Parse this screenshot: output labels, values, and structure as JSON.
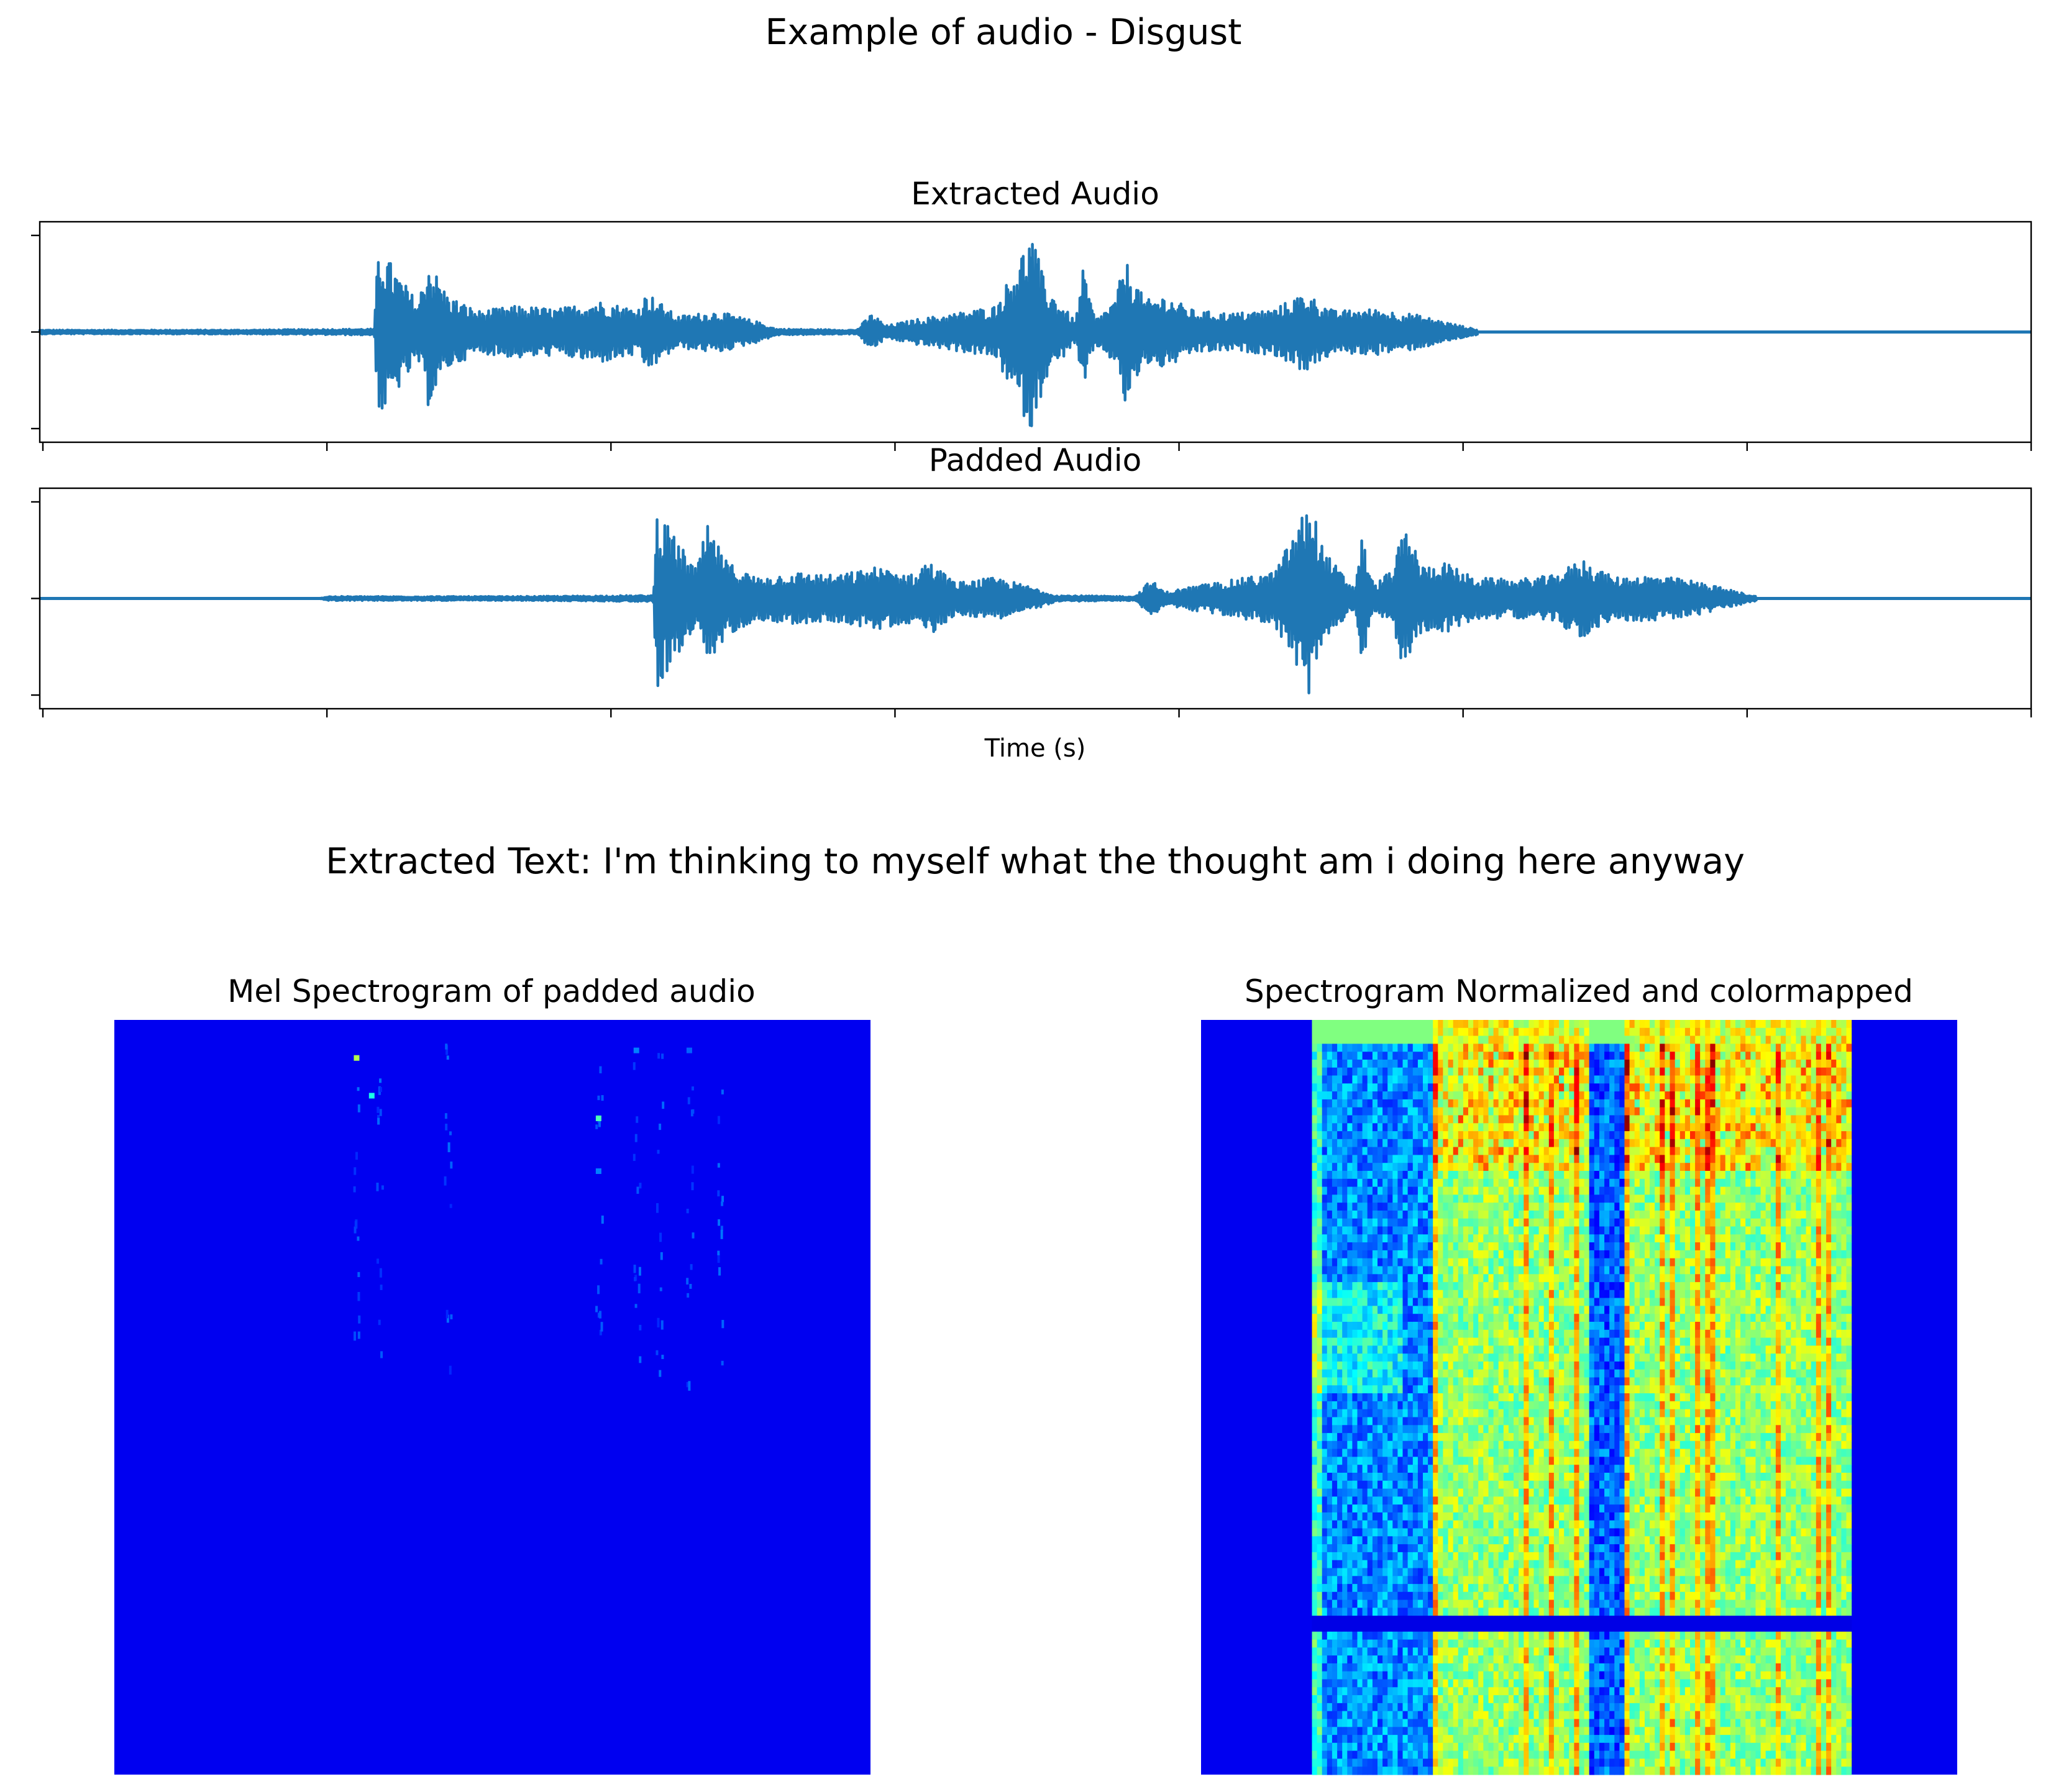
{
  "figure": {
    "suptitle": "Example of audio - Disgust",
    "extracted_text": "Extracted Text: I'm thinking to myself what the thought am i doing here anyway"
  },
  "colors": {
    "waveform": "#1f77b4",
    "colormap": "jet",
    "background": "#ffffff"
  },
  "chart_data": [
    {
      "type": "line",
      "title": "Extracted Audio",
      "xlabel": "",
      "ylabel": "",
      "grid": false,
      "tick_labels": "none",
      "x_ticks_count": 8,
      "y_ticks_count": 3,
      "signal_extent": [
        0,
        0.72
      ],
      "envelope": [
        {
          "x": 0.0,
          "amp": 0.02
        },
        {
          "x": 0.1,
          "amp": 0.02
        },
        {
          "x": 0.168,
          "amp": 0.03
        },
        {
          "x": 0.17,
          "amp": 0.85
        },
        {
          "x": 0.18,
          "amp": 0.55
        },
        {
          "x": 0.19,
          "amp": 0.28
        },
        {
          "x": 0.195,
          "amp": 0.7
        },
        {
          "x": 0.205,
          "amp": 0.35
        },
        {
          "x": 0.22,
          "amp": 0.2
        },
        {
          "x": 0.24,
          "amp": 0.25
        },
        {
          "x": 0.26,
          "amp": 0.22
        },
        {
          "x": 0.28,
          "amp": 0.3
        },
        {
          "x": 0.3,
          "amp": 0.22
        },
        {
          "x": 0.305,
          "amp": 0.38
        },
        {
          "x": 0.32,
          "amp": 0.15
        },
        {
          "x": 0.34,
          "amp": 0.2
        },
        {
          "x": 0.36,
          "amp": 0.1
        },
        {
          "x": 0.37,
          "amp": 0.03
        },
        {
          "x": 0.41,
          "amp": 0.02
        },
        {
          "x": 0.418,
          "amp": 0.18
        },
        {
          "x": 0.425,
          "amp": 0.06
        },
        {
          "x": 0.44,
          "amp": 0.12
        },
        {
          "x": 0.46,
          "amp": 0.18
        },
        {
          "x": 0.48,
          "amp": 0.25
        },
        {
          "x": 0.498,
          "amp": 0.95
        },
        {
          "x": 0.505,
          "amp": 0.45
        },
        {
          "x": 0.52,
          "amp": 0.1
        },
        {
          "x": 0.524,
          "amp": 0.6
        },
        {
          "x": 0.53,
          "amp": 0.12
        },
        {
          "x": 0.54,
          "amp": 0.3
        },
        {
          "x": 0.545,
          "amp": 0.7
        },
        {
          "x": 0.555,
          "amp": 0.3
        },
        {
          "x": 0.565,
          "amp": 0.35
        },
        {
          "x": 0.58,
          "amp": 0.2
        },
        {
          "x": 0.6,
          "amp": 0.18
        },
        {
          "x": 0.62,
          "amp": 0.22
        },
        {
          "x": 0.635,
          "amp": 0.38
        },
        {
          "x": 0.65,
          "amp": 0.2
        },
        {
          "x": 0.67,
          "amp": 0.22
        },
        {
          "x": 0.69,
          "amp": 0.17
        },
        {
          "x": 0.705,
          "amp": 0.1
        },
        {
          "x": 0.72,
          "amp": 0.03
        },
        {
          "x": 1.0,
          "amp": 0.0
        }
      ]
    },
    {
      "type": "line",
      "title": "Padded Audio",
      "xlabel": "Time (s)",
      "ylabel": "",
      "grid": false,
      "tick_labels": "none",
      "x_ticks_count": 8,
      "y_ticks_count": 3,
      "signal_extent": [
        0.14,
        0.86
      ],
      "envelope": [
        {
          "x": 0.0,
          "amp": 0.0
        },
        {
          "x": 0.14,
          "amp": 0.0
        },
        {
          "x": 0.145,
          "amp": 0.02
        },
        {
          "x": 0.24,
          "amp": 0.02
        },
        {
          "x": 0.308,
          "amp": 0.03
        },
        {
          "x": 0.31,
          "amp": 0.85
        },
        {
          "x": 0.32,
          "amp": 0.55
        },
        {
          "x": 0.33,
          "amp": 0.28
        },
        {
          "x": 0.335,
          "amp": 0.7
        },
        {
          "x": 0.345,
          "amp": 0.35
        },
        {
          "x": 0.36,
          "amp": 0.2
        },
        {
          "x": 0.38,
          "amp": 0.25
        },
        {
          "x": 0.4,
          "amp": 0.22
        },
        {
          "x": 0.42,
          "amp": 0.3
        },
        {
          "x": 0.44,
          "amp": 0.22
        },
        {
          "x": 0.445,
          "amp": 0.38
        },
        {
          "x": 0.46,
          "amp": 0.15
        },
        {
          "x": 0.48,
          "amp": 0.2
        },
        {
          "x": 0.5,
          "amp": 0.1
        },
        {
          "x": 0.51,
          "amp": 0.03
        },
        {
          "x": 0.55,
          "amp": 0.02
        },
        {
          "x": 0.558,
          "amp": 0.18
        },
        {
          "x": 0.565,
          "amp": 0.06
        },
        {
          "x": 0.58,
          "amp": 0.12
        },
        {
          "x": 0.6,
          "amp": 0.18
        },
        {
          "x": 0.62,
          "amp": 0.25
        },
        {
          "x": 0.638,
          "amp": 0.95
        },
        {
          "x": 0.645,
          "amp": 0.45
        },
        {
          "x": 0.66,
          "amp": 0.1
        },
        {
          "x": 0.664,
          "amp": 0.6
        },
        {
          "x": 0.67,
          "amp": 0.12
        },
        {
          "x": 0.68,
          "amp": 0.3
        },
        {
          "x": 0.685,
          "amp": 0.7
        },
        {
          "x": 0.695,
          "amp": 0.3
        },
        {
          "x": 0.705,
          "amp": 0.35
        },
        {
          "x": 0.72,
          "amp": 0.2
        },
        {
          "x": 0.74,
          "amp": 0.18
        },
        {
          "x": 0.76,
          "amp": 0.22
        },
        {
          "x": 0.775,
          "amp": 0.38
        },
        {
          "x": 0.79,
          "amp": 0.2
        },
        {
          "x": 0.81,
          "amp": 0.22
        },
        {
          "x": 0.83,
          "amp": 0.17
        },
        {
          "x": 0.845,
          "amp": 0.1
        },
        {
          "x": 0.86,
          "amp": 0.03
        },
        {
          "x": 0.87,
          "amp": 0.0
        },
        {
          "x": 1.0,
          "amp": 0.0
        }
      ]
    },
    {
      "type": "heatmap",
      "title": "Mel Spectrogram of padded audio",
      "colormap": "jet",
      "axis": "off",
      "description_note": "",
      "bright_columns": [
        0.32,
        0.35,
        0.44,
        0.64,
        0.69,
        0.72,
        0.76,
        0.8
      ],
      "hot_spots": [
        {
          "x": 0.32,
          "y": 0.05,
          "level": 0.55
        },
        {
          "x": 0.34,
          "y": 0.1,
          "level": 0.4
        },
        {
          "x": 0.64,
          "y": 0.13,
          "level": 0.45
        },
        {
          "x": 0.64,
          "y": 0.2,
          "level": 0.25
        },
        {
          "x": 0.69,
          "y": 0.04,
          "level": 0.25
        },
        {
          "x": 0.76,
          "y": 0.04,
          "level": 0.22
        }
      ]
    },
    {
      "type": "heatmap",
      "title": "Spectrogram Normalized and colormapped",
      "colormap": "jet",
      "axis": "off",
      "active_region": [
        0.145,
        0.86
      ],
      "low_region": [
        0.145,
        0.31
      ],
      "gap_region": [
        0.51,
        0.56
      ],
      "speech_segments": [
        [
          0.31,
          0.51
        ],
        [
          0.56,
          0.86
        ]
      ],
      "horizontal_line_y": 0.8
    }
  ]
}
